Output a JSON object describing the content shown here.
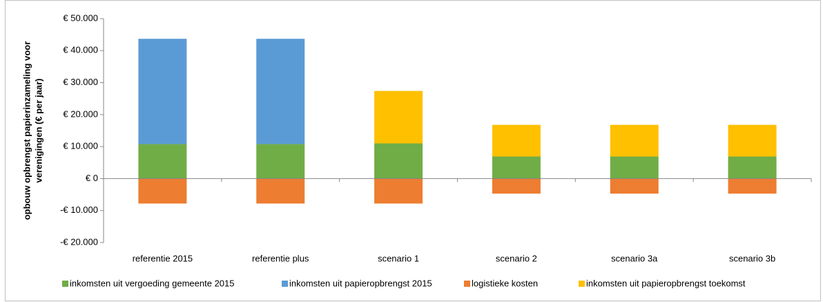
{
  "chart_data": {
    "type": "stacked-bar",
    "ylabel": [
      "opbouw opbrengst papierinzameling voor",
      "verenigingen (€ per jaar)"
    ],
    "categories": [
      "referentie 2015",
      "referentie plus",
      "scenario 1",
      "scenario 2",
      "scenario 3a",
      "scenario 3b"
    ],
    "series": [
      {
        "name": "inkomsten uit vergoeding gemeente 2015",
        "color": "#70ad47",
        "values": [
          10800,
          10800,
          11000,
          6900,
          6900,
          6900
        ]
      },
      {
        "name": "inkomsten uit papieropbrengst 2015",
        "color": "#5b9bd5",
        "values": [
          32900,
          32900,
          null,
          null,
          null,
          null
        ]
      },
      {
        "name": "logistieke kosten",
        "color": "#ed7d31",
        "values": [
          -7800,
          -7800,
          -7800,
          -4700,
          -4700,
          -4700
        ]
      },
      {
        "name": "inkomsten uit papieropbrengst toekomst",
        "color": "#ffc000",
        "values": [
          null,
          null,
          16400,
          9900,
          9900,
          9900
        ]
      }
    ],
    "ylim": [
      -20000,
      50000
    ],
    "yticks": [
      {
        "value": -20000,
        "label": "-€ 20.000"
      },
      {
        "value": -10000,
        "label": "-€ 10.000"
      },
      {
        "value": 0,
        "label": "€ 0"
      },
      {
        "value": 10000,
        "label": "€ 10.000"
      },
      {
        "value": 20000,
        "label": "€ 20.000"
      },
      {
        "value": 30000,
        "label": "€ 30.000"
      },
      {
        "value": 40000,
        "label": "€ 40.000"
      },
      {
        "value": 50000,
        "label": "€ 50.000"
      }
    ],
    "grid": false,
    "legend": "bottom"
  }
}
